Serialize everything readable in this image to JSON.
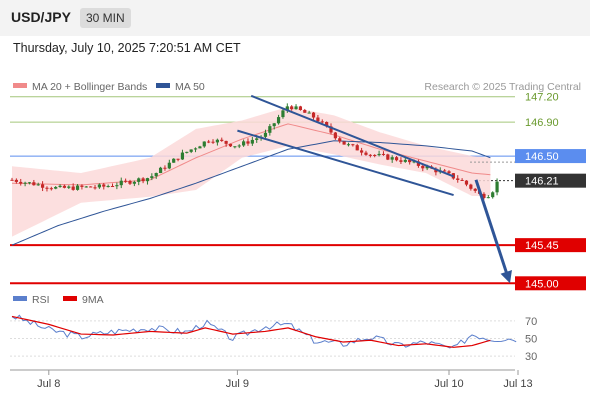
{
  "header": {
    "symbol": "USD/JPY",
    "timeframe": "30 MIN",
    "timestamp": "Thursday, July 10, 2025 7:20:51 AM CET"
  },
  "colors": {
    "bollinger": "#f08a8a",
    "ma50": "#2f5597",
    "candle_up": "#2e7d32",
    "candle_down": "#c62828",
    "resistance_line": "#5b8def",
    "target_line": "#e00000",
    "green_level": "#a4c67a",
    "rsi": "#5b7fcc",
    "rsi_ma": "#e00000"
  },
  "chart_data": [
    {
      "type": "line",
      "title": "",
      "legend": [
        {
          "name": "MA 20 + Bollinger Bands",
          "color": "#f08a8a"
        },
        {
          "name": "MA 50",
          "color": "#2f5597"
        }
      ],
      "credit": "Research © 2025 Trading Central",
      "ylim": [
        144.98,
        147.22
      ],
      "x_ticks": [
        {
          "label": "Jul 8",
          "x": 8
        },
        {
          "label": "Jul 9",
          "x": 49
        },
        {
          "label": "Jul 10",
          "x": 95
        },
        {
          "label": "Jul 13",
          "x": 110
        }
      ],
      "levels": [
        {
          "value": 147.2,
          "label": "147.20",
          "kind": "green"
        },
        {
          "value": 146.9,
          "label": "146.90",
          "kind": "green"
        },
        {
          "value": 146.5,
          "label": "146.50",
          "kind": "blue"
        },
        {
          "value": 146.21,
          "label": "146.21",
          "kind": "current"
        },
        {
          "value": 145.45,
          "label": "145.45",
          "kind": "red"
        },
        {
          "value": 145.0,
          "label": "145.00",
          "kind": "red"
        }
      ],
      "series": [
        {
          "name": "USD/JPY",
          "x": [
            0,
            10,
            20,
            30,
            37,
            43,
            49,
            55,
            60,
            66,
            72,
            78,
            84,
            88,
            94,
            98,
            102,
            104,
            106
          ],
          "y": [
            146.22,
            146.12,
            146.14,
            146.25,
            146.52,
            146.7,
            146.62,
            146.75,
            147.1,
            146.95,
            146.65,
            146.52,
            146.46,
            146.4,
            146.3,
            146.2,
            146.03,
            146.05,
            146.24
          ]
        },
        {
          "name": "MA 20",
          "x": [
            0,
            15,
            30,
            40,
            50,
            60,
            70,
            80,
            90,
            100,
            104
          ],
          "y": [
            146.18,
            146.16,
            146.22,
            146.48,
            146.7,
            146.88,
            146.75,
            146.58,
            146.44,
            146.3,
            146.28
          ]
        },
        {
          "name": "Bollinger upper",
          "x": [
            0,
            15,
            30,
            40,
            50,
            60,
            70,
            80,
            90,
            100,
            104
          ],
          "y": [
            146.38,
            146.3,
            146.48,
            146.82,
            146.92,
            147.08,
            146.98,
            146.78,
            146.62,
            146.5,
            146.48
          ]
        },
        {
          "name": "Bollinger lower",
          "x": [
            0,
            15,
            30,
            40,
            50,
            60,
            70,
            80,
            90,
            100,
            104
          ],
          "y": [
            145.55,
            145.95,
            146.02,
            146.1,
            146.48,
            146.62,
            146.52,
            146.4,
            146.3,
            146.03,
            146.03
          ]
        },
        {
          "name": "MA 50",
          "x": [
            0,
            10,
            20,
            30,
            40,
            50,
            60,
            70,
            80,
            90,
            100,
            104
          ],
          "y": [
            145.45,
            145.68,
            145.85,
            146.0,
            146.18,
            146.38,
            146.58,
            146.68,
            146.66,
            146.62,
            146.56,
            146.48
          ]
        }
      ],
      "annotations": [
        {
          "type": "channel-line",
          "x": [
            52,
            96
          ],
          "y": [
            147.21,
            146.26
          ]
        },
        {
          "type": "channel-line",
          "x": [
            49,
            96
          ],
          "y": [
            146.8,
            146.04
          ]
        },
        {
          "type": "arrow",
          "x": [
            104,
            110
          ],
          "y": [
            146.22,
            145.0
          ]
        }
      ]
    },
    {
      "type": "line",
      "title": "",
      "legend": [
        {
          "name": "RSI",
          "color": "#5b7fcc"
        },
        {
          "name": "9MA",
          "color": "#e00000"
        }
      ],
      "ylim": [
        20,
        80
      ],
      "y_ticks": [
        70,
        50,
        30
      ],
      "series": [
        {
          "name": "RSI",
          "x": [
            0,
            8,
            15,
            22,
            30,
            38,
            42,
            48,
            55,
            60,
            66,
            72,
            78,
            84,
            90,
            96,
            100,
            104,
            110
          ],
          "y": [
            76,
            60,
            52,
            58,
            62,
            57,
            68,
            50,
            64,
            66,
            47,
            44,
            52,
            42,
            46,
            38,
            55,
            50,
            50
          ]
        },
        {
          "name": "9MA",
          "x": [
            0,
            8,
            15,
            22,
            30,
            38,
            42,
            48,
            55,
            60,
            66,
            72,
            78,
            84,
            90,
            96,
            100,
            104
          ],
          "y": [
            75,
            66,
            55,
            54,
            58,
            56,
            62,
            55,
            58,
            62,
            52,
            46,
            48,
            42,
            44,
            40,
            42,
            48
          ]
        }
      ]
    }
  ]
}
